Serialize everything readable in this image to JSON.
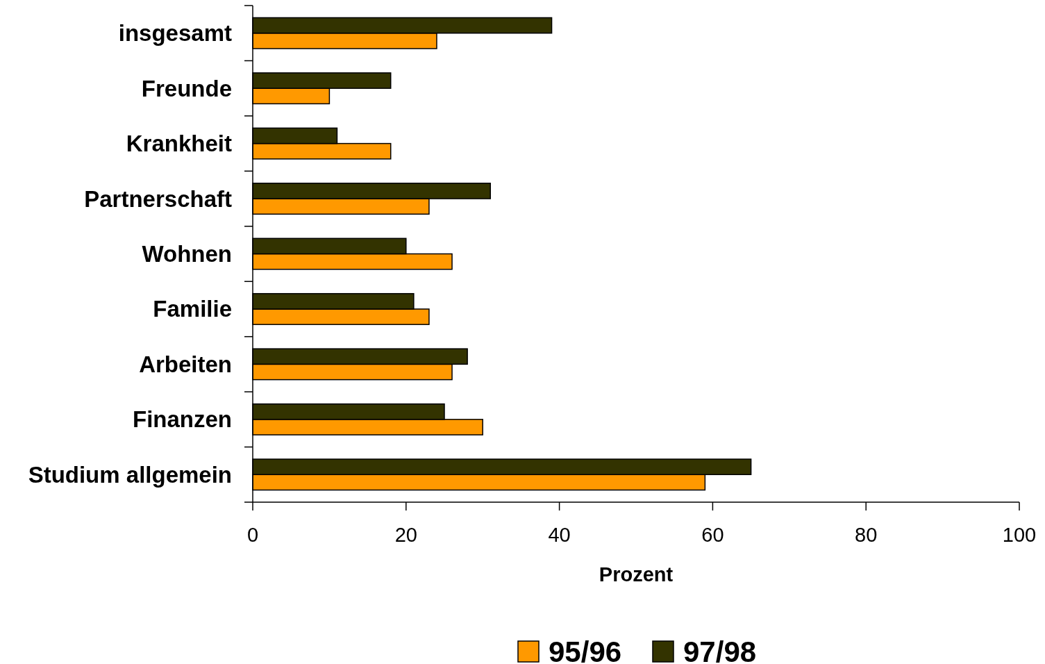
{
  "chart_data": {
    "type": "bar",
    "orientation": "horizontal",
    "xlabel": "Prozent",
    "categories": [
      "insgesamt",
      "Freunde",
      "Krankheit",
      "Partnerschaft",
      "Wohnen",
      "Familie",
      "Arbeiten",
      "Finanzen",
      "Studium allgemein"
    ],
    "series": [
      {
        "name": "95/96",
        "color": "#ff9900",
        "values": [
          24,
          10,
          18,
          23,
          26,
          23,
          26,
          30,
          59
        ]
      },
      {
        "name": "97/98",
        "color": "#333300",
        "values": [
          39,
          18,
          11,
          31,
          20,
          21,
          28,
          25,
          65
        ]
      }
    ],
    "xlim": [
      0,
      100
    ],
    "xticks": [
      0,
      20,
      40,
      60,
      80,
      100
    ],
    "grid": false,
    "legend": "bottom"
  }
}
